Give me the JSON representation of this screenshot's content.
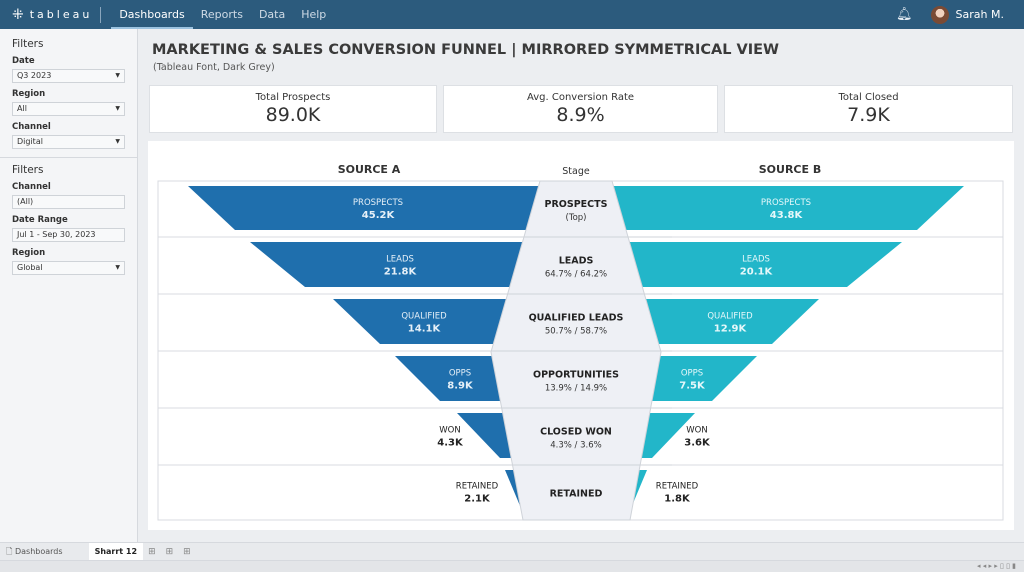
{
  "nav": {
    "brand": "tableau",
    "items": [
      "Dashboards",
      "Reports",
      "Data",
      "Help"
    ],
    "active": "Dashboards",
    "user": "Sarah M.",
    "icons": {
      "logo": "tableau-plus-icon",
      "bell": "bell-icon"
    }
  },
  "sidebar": {
    "group1": {
      "title": "Filters",
      "fields": [
        {
          "label": "Date",
          "value": "Q3 2023",
          "dropdown": true
        },
        {
          "label": "Region",
          "value": "All",
          "dropdown": true
        },
        {
          "label": "Channel",
          "value": "Digital",
          "dropdown": true
        }
      ]
    },
    "group2": {
      "title": "Filters",
      "fields": [
        {
          "label": "Channel",
          "value": "(All)",
          "dropdown": false
        },
        {
          "label": "Date Range",
          "value": "Jul 1 - Sep 30, 2023",
          "dropdown": false
        },
        {
          "label": "Region",
          "value": "Global",
          "dropdown": true
        }
      ]
    }
  },
  "header": {
    "title": "MARKETING & SALES CONVERSION FUNNEL | MIRRORED SYMMETRICAL VIEW",
    "subtitle": "(Tableau Font, Dark Grey)"
  },
  "kpis": [
    {
      "label": "Total Prospects",
      "value": "89.0K"
    },
    {
      "label": "Avg. Conversion Rate",
      "value": "8.9%"
    },
    {
      "label": "Total Closed",
      "value": "7.9K"
    }
  ],
  "chart_data": {
    "type": "funnel",
    "left_title": "SOURCE A",
    "right_title": "SOURCE B",
    "center_title": "Stage",
    "colors": {
      "source_a": "#1f6fad",
      "source_b": "#22b6c9",
      "center": "#eef0f5"
    },
    "stages": [
      {
        "stage": "PROSPECTS",
        "sub": "(Top)",
        "label": "PROSPECTS",
        "a": "45.2K",
        "b": "43.8K"
      },
      {
        "stage": "LEADS",
        "sub": "64.7% / 64.2%",
        "label": "LEADS",
        "a": "21.8K",
        "b": "20.1K"
      },
      {
        "stage": "QUALIFIED LEADS",
        "sub": "50.7% / 58.7%",
        "label": "QUALIFIED",
        "a": "14.1K",
        "b": "12.9K"
      },
      {
        "stage": "OPPORTUNITIES",
        "sub": "13.9% / 14.9%",
        "label": "OPPS",
        "a": "8.9K",
        "b": "7.5K"
      },
      {
        "stage": "CLOSED WON",
        "sub": "4.3% / 3.6%",
        "label": "WON",
        "a": "4.3K",
        "b": "3.6K"
      },
      {
        "stage": "RETAINED",
        "sub": "",
        "label": "RETAINED",
        "a": "2.1K",
        "b": "1.8K"
      }
    ]
  },
  "bottom": {
    "tabs": [
      "Dashboards",
      "Sharrt 12"
    ],
    "active": "Sharrt 12"
  }
}
